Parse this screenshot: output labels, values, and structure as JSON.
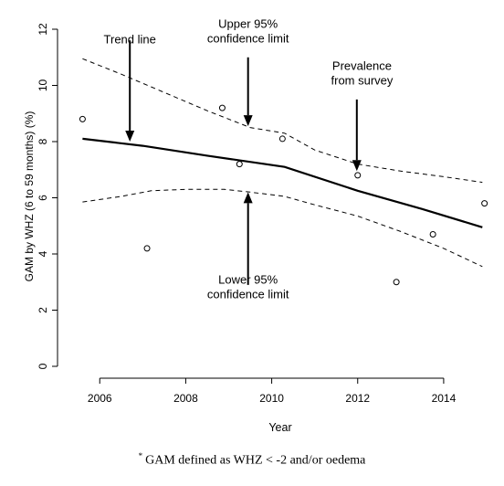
{
  "chart_data": {
    "type": "line",
    "title": "",
    "xlabel": "Year",
    "ylabel": "GAM by WHZ (6 to 59 months) (%)",
    "xlim": [
      2005.4,
      2015.0
    ],
    "ylim": [
      0,
      12
    ],
    "x_ticks": [
      2006,
      2008,
      2010,
      2012,
      2014
    ],
    "y_ticks": [
      0,
      2,
      4,
      6,
      8,
      10,
      12
    ],
    "grid": false,
    "series": [
      {
        "role": "trend",
        "style": "solid",
        "x": [
          2005.6,
          2007.0,
          2008.5,
          2010.3,
          2012.0,
          2013.5,
          2014.9
        ],
        "y": [
          8.1,
          7.85,
          7.5,
          7.1,
          6.25,
          5.6,
          4.95
        ]
      },
      {
        "role": "upper",
        "style": "dashed",
        "x": [
          2005.6,
          2006.5,
          2007.5,
          2008.5,
          2009.5,
          2010.3,
          2011.0,
          2012.0,
          2013.0,
          2014.0,
          2014.9
        ],
        "y": [
          10.95,
          10.4,
          9.75,
          9.1,
          8.5,
          8.3,
          7.7,
          7.2,
          6.95,
          6.75,
          6.55
        ]
      },
      {
        "role": "lower",
        "style": "dashed",
        "x": [
          2005.6,
          2006.5,
          2007.2,
          2008.0,
          2008.9,
          2009.5,
          2010.3,
          2011.0,
          2012.0,
          2013.0,
          2014.0,
          2014.9
        ],
        "y": [
          5.85,
          6.05,
          6.25,
          6.3,
          6.3,
          6.2,
          6.05,
          5.75,
          5.35,
          4.8,
          4.2,
          3.55
        ]
      },
      {
        "role": "survey",
        "style": "points",
        "x": [
          2005.6,
          2007.1,
          2008.85,
          2009.25,
          2010.25,
          2012.0,
          2012.9,
          2013.75,
          2014.95
        ],
        "y": [
          8.8,
          4.2,
          9.2,
          7.2,
          8.1,
          6.8,
          3.0,
          4.7,
          5.8
        ]
      }
    ],
    "annotations": [
      {
        "lines": [
          "Trend line"
        ],
        "arrow_x": 2006.7,
        "arrow_from_y": 11.6,
        "arrow_to_y": 8.0,
        "text_x": 2006.7,
        "text_y": 11.5
      },
      {
        "lines": [
          "Upper 95%",
          "confidence limit"
        ],
        "arrow_x": 2009.45,
        "arrow_from_y": 11.0,
        "arrow_to_y": 8.55,
        "text_x": 2009.45,
        "text_y": 12.05
      },
      {
        "lines": [
          "Prevalence",
          "from survey"
        ],
        "arrow_x": 2011.98,
        "arrow_from_y": 9.5,
        "arrow_to_y": 6.95,
        "text_x": 2012.1,
        "text_y": 10.55
      },
      {
        "lines": [
          "Lower 95%",
          "confidence limit"
        ],
        "arrow_x": 2009.45,
        "arrow_from_y": 2.9,
        "arrow_to_y": 6.2,
        "text_x": 2009.45,
        "text_y": 2.95
      }
    ]
  },
  "footnote": {
    "marker": "*",
    "text": "GAM defined as WHZ < -2 and/or oedema"
  }
}
